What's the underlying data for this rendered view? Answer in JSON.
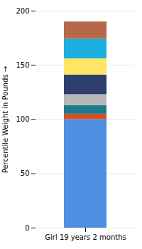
{
  "chart_data": {
    "type": "bar",
    "stacked": true,
    "categories": [
      "Girl 19 years 2 months"
    ],
    "series": [
      {
        "color": "#4D8FE0",
        "values": [
          100
        ]
      },
      {
        "color": "#D94F1E",
        "values": [
          5
        ]
      },
      {
        "color": "#1B7B8A",
        "values": [
          8
        ]
      },
      {
        "color": "#B8B8B8",
        "values": [
          10
        ]
      },
      {
        "color": "#2E3F6E",
        "values": [
          18
        ]
      },
      {
        "color": "#FFE566",
        "values": [
          15
        ]
      },
      {
        "color": "#1BAEE0",
        "values": [
          18
        ]
      },
      {
        "color": "#B5694A",
        "values": [
          16
        ]
      }
    ],
    "ylabel": "Percentile Weight in Pounds",
    "ylim": [
      0,
      200
    ],
    "yticks": [
      0,
      50,
      100,
      150,
      200
    ],
    "grid": true
  }
}
